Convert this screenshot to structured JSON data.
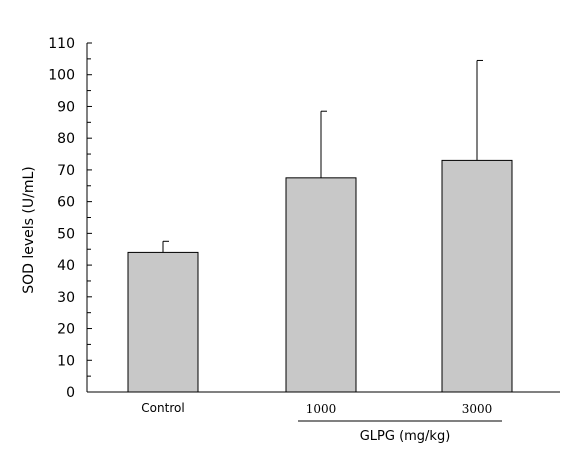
{
  "chart_data": {
    "type": "bar",
    "categories": [
      "Control",
      "1000",
      "3000"
    ],
    "values": [
      44,
      67.5,
      73
    ],
    "error_upper": [
      47.5,
      88.5,
      104.5
    ],
    "ylabel": "SOD levels (U/mL)",
    "xlabel": "",
    "group_label": "GLPG (mg/kg)",
    "ylim": [
      0,
      110
    ],
    "y_ticks": [
      0,
      10,
      20,
      30,
      40,
      50,
      60,
      70,
      80,
      90,
      100,
      110
    ],
    "minor_step": 5,
    "grid": false,
    "legend": "none",
    "bar_color": "#c8c8c8",
    "edge_color": "#000000"
  }
}
